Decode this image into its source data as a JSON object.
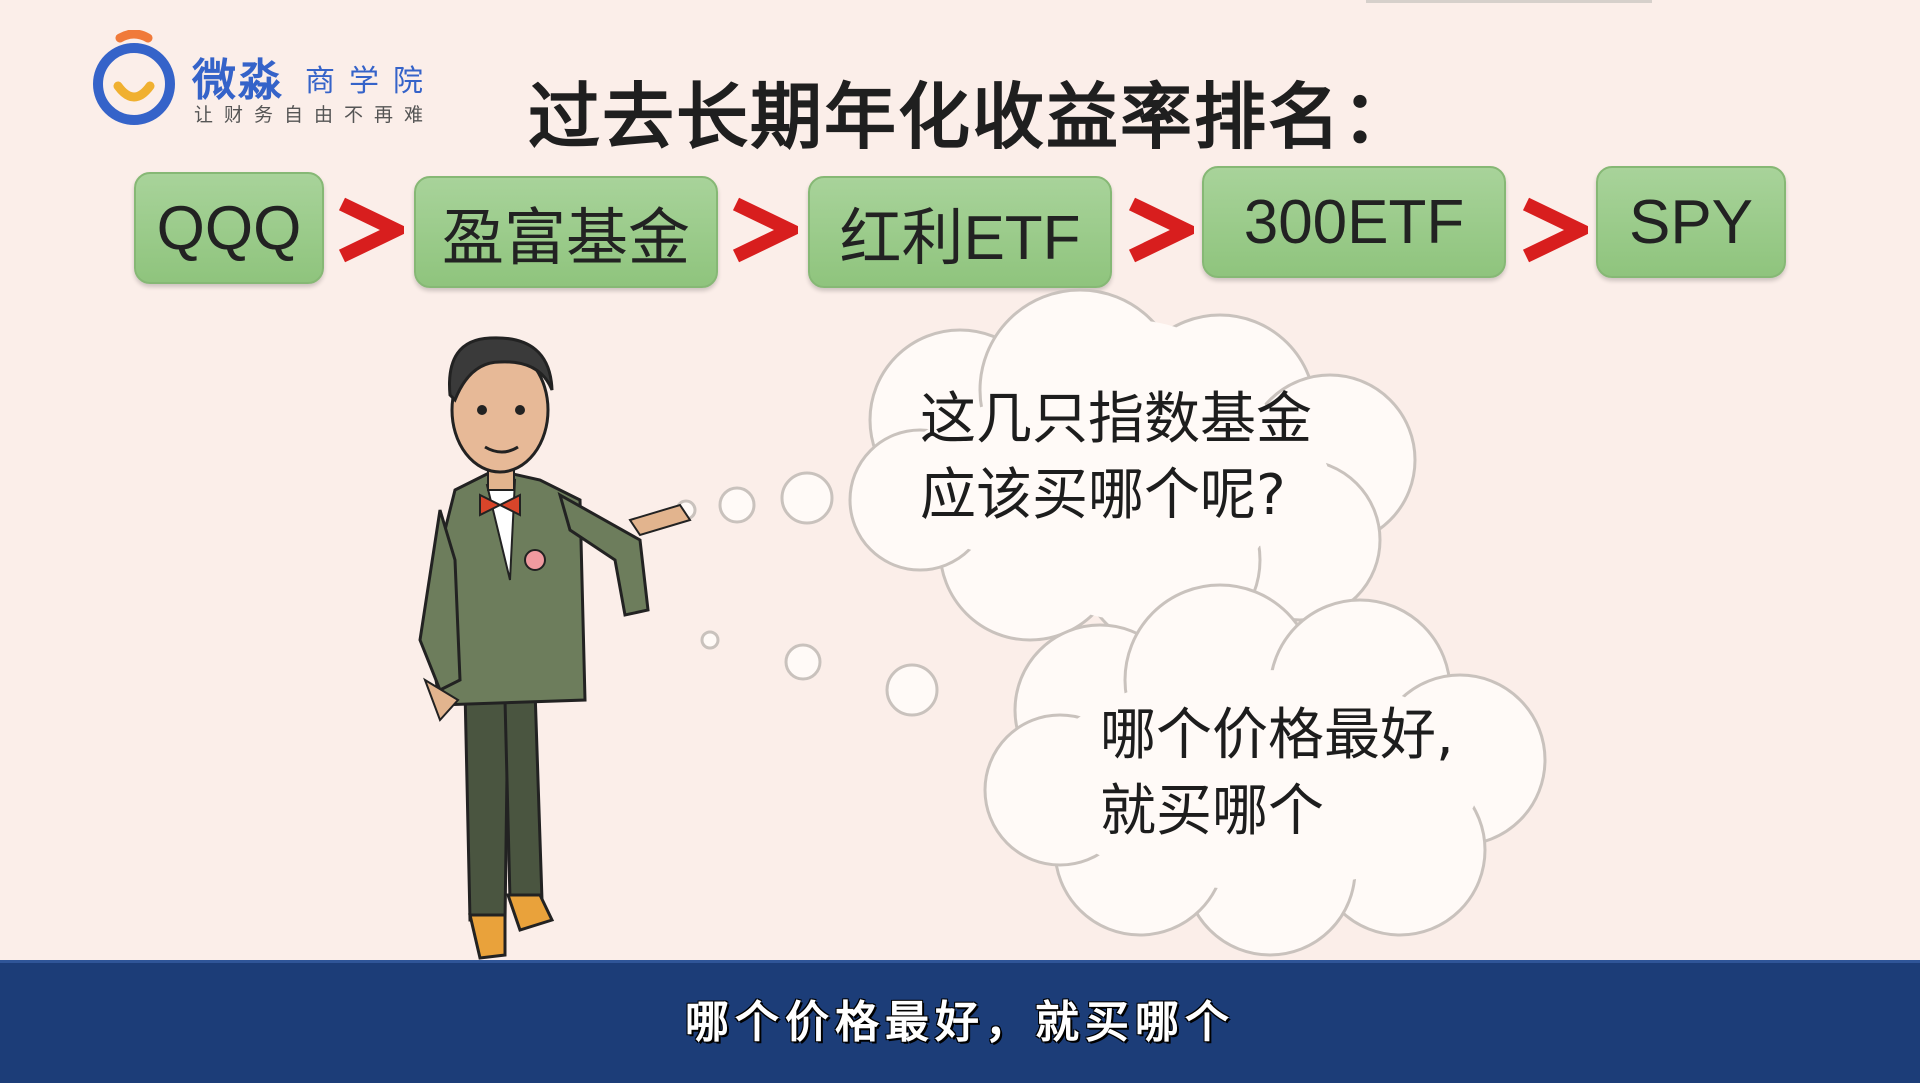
{
  "logo": {
    "name": "微淼",
    "sub": "商学院",
    "tagline": "让财务自由不再难",
    "brand_color": "#3563c9",
    "accent_color": "#f07a3a"
  },
  "title": "过去长期年化收益率排名：",
  "ranking": {
    "items": [
      "QQQ",
      "盈富基金",
      "红利ETF",
      "300ETF",
      "SPY"
    ],
    "separator": ">"
  },
  "bubbles": {
    "first": "这几只指数基金\n应该买哪个呢?",
    "second": "哪个价格最好,\n就买哪个"
  },
  "caption": "哪个价格最好，就买哪个",
  "colors": {
    "background": "#fbeee9",
    "rank_box": "#9ccb8b",
    "arrow": "#d81e1e",
    "caption_bar": "#1c3d78"
  }
}
